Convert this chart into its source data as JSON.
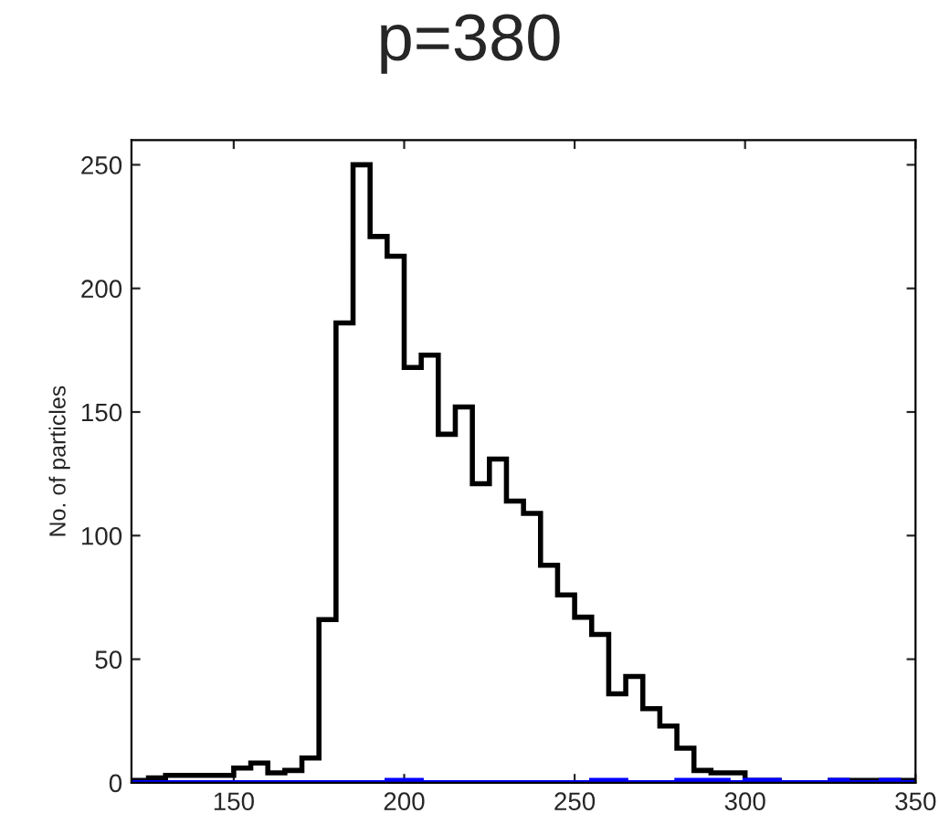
{
  "chart_data": {
    "type": "histogram",
    "title": "p=380",
    "ylabel": "No. of particles",
    "bins": [
      120,
      125,
      130,
      135,
      140,
      145,
      150,
      155,
      160,
      165,
      170,
      175,
      180,
      185,
      190,
      195,
      200,
      205,
      210,
      215,
      220,
      225,
      230,
      235,
      240,
      245,
      250,
      255,
      260,
      265,
      270,
      275,
      280,
      285,
      290,
      295,
      300,
      305,
      310,
      315,
      320,
      325,
      330,
      335,
      340,
      345,
      350
    ],
    "series": [
      {
        "color": "#000000",
        "values": [
          1,
          2,
          3,
          3,
          3,
          3,
          6,
          8,
          4,
          5,
          10,
          66,
          186,
          250,
          221,
          213,
          168,
          173,
          141,
          152,
          121,
          131,
          114,
          109,
          88,
          76,
          67,
          60,
          36,
          43,
          30,
          23,
          14,
          5,
          4,
          4,
          1,
          1,
          0,
          0,
          0,
          1,
          1,
          1,
          1,
          1
        ]
      },
      {
        "color": "#0000ff",
        "values": [
          0,
          0,
          0,
          0,
          0,
          0,
          0,
          0,
          0,
          0,
          0,
          0,
          0,
          0,
          0,
          1,
          1,
          0,
          0,
          0,
          0,
          0,
          0,
          0,
          0,
          0,
          0,
          1,
          1,
          0,
          0,
          0,
          1,
          1,
          1,
          0,
          1,
          1,
          0,
          0,
          0,
          1,
          0,
          0,
          1,
          0
        ]
      }
    ],
    "xlim": [
      120,
      350
    ],
    "ylim": [
      0,
      260
    ],
    "xticks": [
      150,
      200,
      250,
      300,
      350
    ],
    "yticks": [
      0,
      50,
      100,
      150,
      200,
      250
    ],
    "grid": false,
    "legend": false
  }
}
